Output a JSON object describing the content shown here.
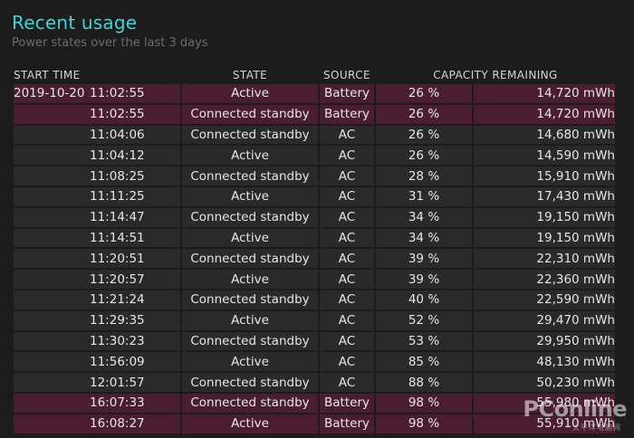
{
  "report": {
    "title": "Recent usage",
    "subtitle": "Power states over the last 3 days"
  },
  "colors": {
    "accent": "#3ad6d6",
    "battery_row": "#4a1e30",
    "ac_row": "#2a2a2a",
    "background": "#1c1c1c"
  },
  "table": {
    "headers": {
      "start_time": "START TIME",
      "state": "STATE",
      "source": "SOURCE",
      "capacity": "CAPACITY REMAINING"
    },
    "rows": [
      {
        "date": "2019-10-20",
        "time": "11:02:55",
        "state": "Active",
        "source": "Battery",
        "percent": "26 %",
        "mwh": "14,720 mWh"
      },
      {
        "date": "",
        "time": "11:02:55",
        "state": "Connected standby",
        "source": "Battery",
        "percent": "26 %",
        "mwh": "14,720 mWh"
      },
      {
        "date": "",
        "time": "11:04:06",
        "state": "Connected standby",
        "source": "AC",
        "percent": "26 %",
        "mwh": "14,680 mWh"
      },
      {
        "date": "",
        "time": "11:04:12",
        "state": "Active",
        "source": "AC",
        "percent": "26 %",
        "mwh": "14,590 mWh"
      },
      {
        "date": "",
        "time": "11:08:25",
        "state": "Connected standby",
        "source": "AC",
        "percent": "28 %",
        "mwh": "15,910 mWh"
      },
      {
        "date": "",
        "time": "11:11:25",
        "state": "Active",
        "source": "AC",
        "percent": "31 %",
        "mwh": "17,430 mWh"
      },
      {
        "date": "",
        "time": "11:14:47",
        "state": "Connected standby",
        "source": "AC",
        "percent": "34 %",
        "mwh": "19,150 mWh"
      },
      {
        "date": "",
        "time": "11:14:51",
        "state": "Active",
        "source": "AC",
        "percent": "34 %",
        "mwh": "19,150 mWh"
      },
      {
        "date": "",
        "time": "11:20:51",
        "state": "Connected standby",
        "source": "AC",
        "percent": "39 %",
        "mwh": "22,310 mWh"
      },
      {
        "date": "",
        "time": "11:20:57",
        "state": "Active",
        "source": "AC",
        "percent": "39 %",
        "mwh": "22,360 mWh"
      },
      {
        "date": "",
        "time": "11:21:24",
        "state": "Connected standby",
        "source": "AC",
        "percent": "40 %",
        "mwh": "22,590 mWh"
      },
      {
        "date": "",
        "time": "11:29:35",
        "state": "Active",
        "source": "AC",
        "percent": "52 %",
        "mwh": "29,470 mWh"
      },
      {
        "date": "",
        "time": "11:30:23",
        "state": "Connected standby",
        "source": "AC",
        "percent": "53 %",
        "mwh": "29,950 mWh"
      },
      {
        "date": "",
        "time": "11:56:09",
        "state": "Active",
        "source": "AC",
        "percent": "85 %",
        "mwh": "48,130 mWh"
      },
      {
        "date": "",
        "time": "12:01:57",
        "state": "Connected standby",
        "source": "AC",
        "percent": "88 %",
        "mwh": "50,230 mWh"
      },
      {
        "date": "",
        "time": "16:07:33",
        "state": "Connected standby",
        "source": "Battery",
        "percent": "98 %",
        "mwh": "55,980 mWh"
      },
      {
        "date": "",
        "time": "16:08:27",
        "state": "Active",
        "source": "Battery",
        "percent": "98 %",
        "mwh": "55,910 mWh"
      }
    ]
  },
  "watermark": {
    "logo": "PConline",
    "tagline": "太平洋电脑网"
  }
}
